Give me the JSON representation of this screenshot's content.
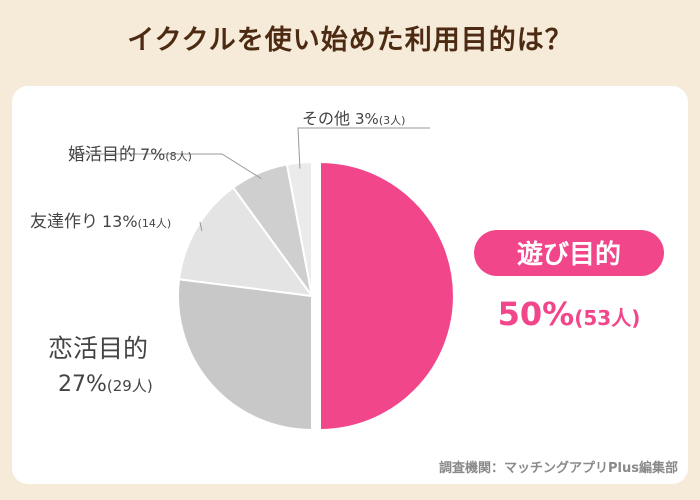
{
  "title": "イククルを使い始めた利用目的は？",
  "source": "調査機関：マッチングアプリPlus編集部",
  "chart_data": {
    "type": "pie",
    "slices": [
      {
        "label": "遊び目的",
        "percent": 50,
        "count": 53,
        "color": "#f2468a",
        "text_percent": "50%",
        "text_count": "(53人)"
      },
      {
        "label": "恋活目的",
        "percent": 27,
        "count": 29,
        "color": "#c8c8c8",
        "text_percent": "27%",
        "text_count": "(29人)"
      },
      {
        "label": "友達作り",
        "percent": 13,
        "count": 14,
        "color": "#e4e4e4",
        "text_percent": "13%",
        "text_count": "(14人)"
      },
      {
        "label": "婚活目的",
        "percent": 7,
        "count": 8,
        "color": "#cfcfcf",
        "text_percent": "7%",
        "text_count": "(8人)"
      },
      {
        "label": "その他",
        "percent": 3,
        "count": 3,
        "color": "#ebebeb",
        "text_percent": "3%",
        "text_count": "(3人)"
      }
    ]
  }
}
